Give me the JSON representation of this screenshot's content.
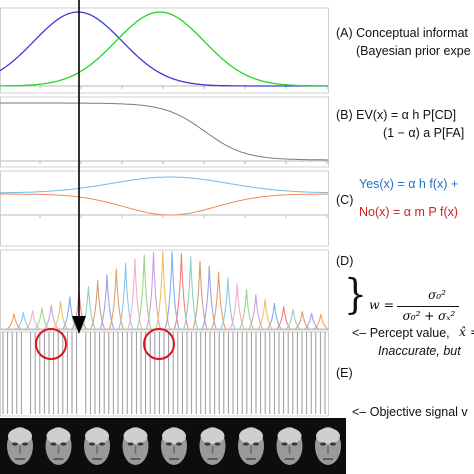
{
  "labels": {
    "A_line1": "(A)  Conceptual informat",
    "A_line2": "(Bayesian prior expe",
    "B_line1": "(B)  EV(x)  =  α h P[CD]",
    "B_line2": "(1 − α) a P[FA]",
    "C_marker": "(C)",
    "C_yes": "Yes(x)  =  α h f(x)  +",
    "C_no": "No(x) =  α m P f(x)",
    "D_marker": "(D)",
    "D_w": "w =",
    "D_num": "σ₀²",
    "D_den": "σ₀² + σₓ²",
    "D_brace": "}",
    "percept": "<– Percept value,",
    "percept_sym": "x̂ =",
    "inaccurate": "Inaccurate, but",
    "E_marker": "(E)",
    "objective": "<– Objective signal v"
  },
  "colors": {
    "blue_curve": "#3b3bd6",
    "green_curve": "#22d822",
    "gray_curve": "#7a7a7a",
    "yes_curve": "#77b9e8",
    "no_curve": "#f08a55",
    "yes_text": "#1a73c9",
    "no_text": "#d22020",
    "circle": "#d8141e",
    "arrow": "#000000",
    "panel_border": "#d0d0d0",
    "faces_strip": "#0d0d0d"
  },
  "panels": [
    "A",
    "B",
    "C",
    "D",
    "E"
  ],
  "icons": [
    "down-arrow-icon",
    "red-circle-icon",
    "face-thumbnail-icon"
  ]
}
